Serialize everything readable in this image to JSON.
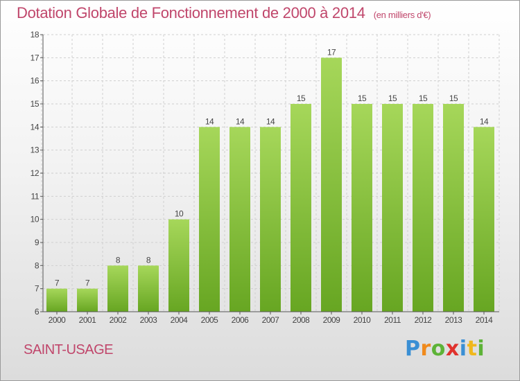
{
  "header": {
    "title": "Dotation Globale de Fonctionnement de 2000 à 2014",
    "unit": "(en milliers d'€)"
  },
  "commune": "SAINT-USAGE",
  "logo": {
    "text": "Proxiti",
    "letters": [
      {
        "ch": "P",
        "color": "#3a8fd4"
      },
      {
        "ch": "r",
        "color": "#f08a1c"
      },
      {
        "ch": "o",
        "color": "#5db337"
      },
      {
        "ch": "x",
        "color": "#e0322d"
      },
      {
        "ch": "i",
        "color": "#3a8fd4"
      },
      {
        "ch": "t",
        "color": "#f0b81c"
      },
      {
        "ch": "i",
        "color": "#5db337"
      }
    ]
  },
  "colors": {
    "title": "#c0466b",
    "bar_light": "#a6d75a",
    "bar_dark": "#67a622",
    "axis": "#555555",
    "grid": "#cfcfcf"
  },
  "chart_data": {
    "type": "bar",
    "title": "Dotation Globale de Fonctionnement de 2000 à 2014",
    "xlabel": "",
    "ylabel": "",
    "categories": [
      "2000",
      "2001",
      "2002",
      "2003",
      "2004",
      "2005",
      "2006",
      "2007",
      "2008",
      "2009",
      "2010",
      "2011",
      "2012",
      "2013",
      "2014"
    ],
    "values": [
      7,
      7,
      8,
      8,
      10,
      14,
      14,
      14,
      15,
      17,
      15,
      15,
      15,
      15,
      14
    ],
    "ylim": [
      6,
      18
    ],
    "yticks": [
      6,
      7,
      8,
      9,
      10,
      11,
      12,
      13,
      14,
      15,
      16,
      17,
      18
    ],
    "grid": true,
    "legend": "none"
  }
}
